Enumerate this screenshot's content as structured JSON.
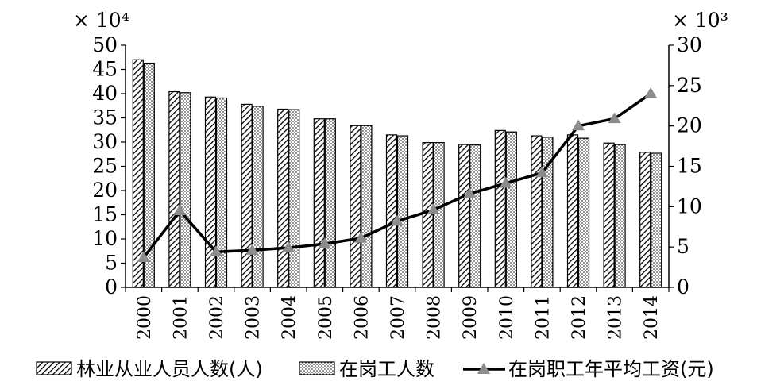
{
  "chart_data": {
    "type": "bar",
    "categories": [
      "2000",
      "2001",
      "2002",
      "2003",
      "2004",
      "2005",
      "2006",
      "2007",
      "2008",
      "2009",
      "2010",
      "2011",
      "2012",
      "2013",
      "2014"
    ],
    "series": [
      {
        "name": "林业从业人员人数(人)",
        "type": "bar",
        "axis": "left",
        "values": [
          47.0,
          40.4,
          39.3,
          37.8,
          36.8,
          34.8,
          33.4,
          31.5,
          29.9,
          29.5,
          32.4,
          31.3,
          31.5,
          29.8,
          27.9
        ]
      },
      {
        "name": "在岗工人数",
        "type": "bar",
        "axis": "left",
        "values": [
          46.3,
          40.2,
          39.1,
          37.4,
          36.7,
          34.8,
          33.4,
          31.3,
          29.9,
          29.4,
          32.1,
          31.0,
          30.8,
          29.5,
          27.7
        ]
      },
      {
        "name": "在岗职工年平均工资(元)",
        "type": "line",
        "axis": "right",
        "values": [
          3.7,
          9.5,
          4.4,
          4.6,
          4.9,
          5.4,
          6.1,
          8.2,
          9.6,
          11.6,
          12.9,
          14.2,
          20.0,
          20.9,
          24.0
        ]
      }
    ],
    "left_axis": {
      "unit": "× 10⁴",
      "ylim": [
        0,
        50
      ],
      "ticks": [
        "0",
        "5",
        "10",
        "15",
        "20",
        "25",
        "30",
        "35",
        "40",
        "45",
        "50"
      ]
    },
    "right_axis": {
      "unit": "× 10³",
      "ylim": [
        0,
        30
      ],
      "ticks": [
        "0",
        "5",
        "10",
        "15",
        "20",
        "25",
        "30"
      ]
    },
    "grid": false,
    "legend_position": "bottom",
    "colors": {
      "bar_hatch": "#000000",
      "bar_dots": "#000000",
      "line": "#000000",
      "marker": "#8c8c8c"
    }
  }
}
